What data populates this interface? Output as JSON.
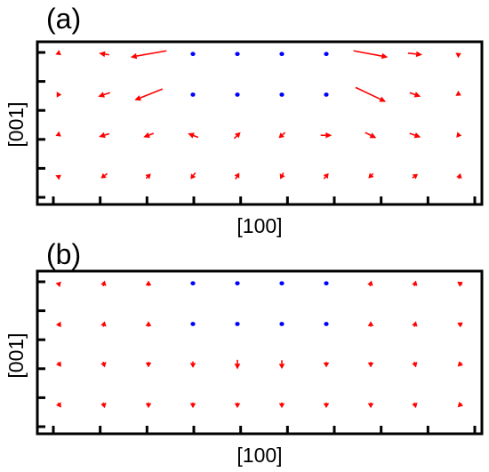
{
  "chart_data": [
    {
      "type": "quiver",
      "panel_label": "(a)",
      "xlabel": "[100]",
      "ylabel": "[001]",
      "xlim": [
        0.5,
        10.5
      ],
      "ylim": [
        0.3,
        4.3
      ],
      "x_ticks": 10,
      "y_ticks": 6,
      "grid": false,
      "colors": {
        "arrow": "#ff0000",
        "dot": "#0000ff"
      },
      "arrows": [
        {
          "x": 1,
          "y": 4,
          "dx": 0.04,
          "dy": -0.03,
          "kind": "arrow"
        },
        {
          "x": 2,
          "y": 4,
          "dx": -0.13,
          "dy": 0.02,
          "kind": "arrow"
        },
        {
          "x": 3,
          "y": 4,
          "dx": -0.45,
          "dy": -0.08,
          "kind": "arrow"
        },
        {
          "x": 4,
          "y": 4,
          "kind": "dot"
        },
        {
          "x": 5,
          "y": 4,
          "kind": "dot"
        },
        {
          "x": 6,
          "y": 4,
          "kind": "dot"
        },
        {
          "x": 7,
          "y": 4,
          "kind": "dot"
        },
        {
          "x": 8,
          "y": 4,
          "dx": 0.43,
          "dy": -0.08,
          "kind": "arrow"
        },
        {
          "x": 9,
          "y": 4,
          "dx": 0.18,
          "dy": -0.02,
          "kind": "arrow"
        },
        {
          "x": 10,
          "y": 4,
          "dx": 0.04,
          "dy": 0.02,
          "kind": "arrow"
        },
        {
          "x": 1,
          "y": 3,
          "dx": 0.05,
          "dy": 0.0,
          "kind": "arrow"
        },
        {
          "x": 2,
          "y": 3,
          "dx": -0.15,
          "dy": -0.05,
          "kind": "arrow"
        },
        {
          "x": 3,
          "y": 3,
          "dx": -0.35,
          "dy": -0.14,
          "kind": "arrow"
        },
        {
          "x": 4,
          "y": 3,
          "kind": "dot"
        },
        {
          "x": 5,
          "y": 3,
          "kind": "dot"
        },
        {
          "x": 6,
          "y": 3,
          "kind": "dot"
        },
        {
          "x": 7,
          "y": 3,
          "kind": "dot"
        },
        {
          "x": 8,
          "y": 3,
          "dx": 0.38,
          "dy": -0.18,
          "kind": "arrow"
        },
        {
          "x": 9,
          "y": 3,
          "dx": 0.14,
          "dy": -0.05,
          "kind": "arrow"
        },
        {
          "x": 10,
          "y": 3,
          "dx": 0.04,
          "dy": -0.02,
          "kind": "arrow"
        },
        {
          "x": 1,
          "y": 2,
          "dx": 0.04,
          "dy": -0.03,
          "kind": "arrow"
        },
        {
          "x": 2,
          "y": 2,
          "dx": -0.13,
          "dy": -0.04,
          "kind": "arrow"
        },
        {
          "x": 3,
          "y": 2,
          "dx": -0.13,
          "dy": -0.05,
          "kind": "arrow"
        },
        {
          "x": 4,
          "y": 2,
          "dx": -0.13,
          "dy": 0.05,
          "kind": "arrow"
        },
        {
          "x": 5,
          "y": 2,
          "dx": 0.08,
          "dy": 0.08,
          "kind": "arrow"
        },
        {
          "x": 6,
          "y": 2,
          "dx": -0.08,
          "dy": -0.07,
          "kind": "arrow"
        },
        {
          "x": 7,
          "y": 2,
          "dx": 0.14,
          "dy": 0.0,
          "kind": "arrow"
        },
        {
          "x": 8,
          "y": 2,
          "dx": 0.14,
          "dy": -0.07,
          "kind": "arrow"
        },
        {
          "x": 9,
          "y": 2,
          "dx": 0.14,
          "dy": -0.05,
          "kind": "arrow"
        },
        {
          "x": 10,
          "y": 2,
          "dx": 0.05,
          "dy": -0.01,
          "kind": "arrow"
        },
        {
          "x": 1,
          "y": 1,
          "dx": 0.04,
          "dy": 0.03,
          "kind": "arrow"
        },
        {
          "x": 2,
          "y": 1,
          "dx": -0.08,
          "dy": -0.06,
          "kind": "arrow"
        },
        {
          "x": 3,
          "y": 1,
          "dx": 0.06,
          "dy": 0.06,
          "kind": "arrow"
        },
        {
          "x": 4,
          "y": 1,
          "dx": -0.06,
          "dy": -0.08,
          "kind": "arrow"
        },
        {
          "x": 5,
          "y": 1,
          "dx": 0.05,
          "dy": 0.08,
          "kind": "arrow"
        },
        {
          "x": 6,
          "y": 1,
          "dx": -0.04,
          "dy": -0.08,
          "kind": "arrow"
        },
        {
          "x": 7,
          "y": 1,
          "dx": 0.06,
          "dy": 0.07,
          "kind": "arrow"
        },
        {
          "x": 8,
          "y": 1,
          "dx": -0.06,
          "dy": -0.06,
          "kind": "arrow"
        },
        {
          "x": 9,
          "y": 1,
          "dx": 0.07,
          "dy": 0.05,
          "kind": "arrow"
        },
        {
          "x": 10,
          "y": 1,
          "dx": 0.02,
          "dy": 0.07,
          "kind": "arrow"
        }
      ]
    },
    {
      "type": "quiver",
      "panel_label": "(b)",
      "xlabel": "[100]",
      "ylabel": "[001]",
      "xlim": [
        0.5,
        10.5
      ],
      "ylim": [
        0.3,
        4.3
      ],
      "x_ticks": 10,
      "y_ticks": 6,
      "grid": false,
      "colors": {
        "arrow": "#ff0000",
        "dot": "#0000ff"
      },
      "arrows": [
        {
          "x": 1,
          "y": 4,
          "dx": 0.04,
          "dy": 0.04,
          "kind": "arrow"
        },
        {
          "x": 2,
          "y": 4,
          "dx": 0.02,
          "dy": 0.07,
          "kind": "arrow"
        },
        {
          "x": 3,
          "y": 4,
          "dx": 0.0,
          "dy": 0.07,
          "kind": "arrow"
        },
        {
          "x": 4,
          "y": 4,
          "kind": "dot"
        },
        {
          "x": 5,
          "y": 4,
          "kind": "dot"
        },
        {
          "x": 6,
          "y": 4,
          "kind": "dot"
        },
        {
          "x": 7,
          "y": 4,
          "kind": "dot"
        },
        {
          "x": 8,
          "y": 4,
          "dx": 0.02,
          "dy": 0.07,
          "kind": "arrow"
        },
        {
          "x": 9,
          "y": 4,
          "dx": 0.02,
          "dy": 0.07,
          "kind": "arrow"
        },
        {
          "x": 10,
          "y": 4,
          "dx": -0.06,
          "dy": 0.04,
          "kind": "arrow"
        },
        {
          "x": 1,
          "y": 3,
          "dx": 0.03,
          "dy": 0.06,
          "kind": "arrow"
        },
        {
          "x": 2,
          "y": 3,
          "dx": 0.02,
          "dy": 0.07,
          "kind": "arrow"
        },
        {
          "x": 3,
          "y": 3,
          "dx": 0.0,
          "dy": 0.07,
          "kind": "arrow"
        },
        {
          "x": 4,
          "y": 3,
          "kind": "dot"
        },
        {
          "x": 5,
          "y": 3,
          "kind": "dot"
        },
        {
          "x": 6,
          "y": 3,
          "kind": "dot"
        },
        {
          "x": 7,
          "y": 3,
          "kind": "dot"
        },
        {
          "x": 8,
          "y": 3,
          "dx": 0.0,
          "dy": 0.07,
          "kind": "arrow"
        },
        {
          "x": 9,
          "y": 3,
          "dx": 0.02,
          "dy": 0.07,
          "kind": "arrow"
        },
        {
          "x": 10,
          "y": 3,
          "dx": -0.06,
          "dy": 0.03,
          "kind": "arrow"
        },
        {
          "x": 1,
          "y": 2,
          "dx": 0.04,
          "dy": -0.06,
          "kind": "arrow"
        },
        {
          "x": 2,
          "y": 2,
          "dx": 0.02,
          "dy": -0.07,
          "kind": "arrow"
        },
        {
          "x": 3,
          "y": 2,
          "dx": 0.0,
          "dy": -0.07,
          "kind": "arrow"
        },
        {
          "x": 4,
          "y": 2,
          "dx": 0.0,
          "dy": -0.08,
          "kind": "arrow"
        },
        {
          "x": 5,
          "y": 2,
          "dx": 0.0,
          "dy": -0.12,
          "kind": "arrow"
        },
        {
          "x": 6,
          "y": 2,
          "dx": 0.0,
          "dy": -0.11,
          "kind": "arrow"
        },
        {
          "x": 7,
          "y": 2,
          "dx": 0.0,
          "dy": -0.07,
          "kind": "arrow"
        },
        {
          "x": 8,
          "y": 2,
          "dx": 0.0,
          "dy": -0.07,
          "kind": "arrow"
        },
        {
          "x": 9,
          "y": 2,
          "dx": 0.02,
          "dy": -0.07,
          "kind": "arrow"
        },
        {
          "x": 10,
          "y": 2,
          "dx": -0.05,
          "dy": -0.05,
          "kind": "arrow"
        },
        {
          "x": 1,
          "y": 1,
          "dx": 0.04,
          "dy": -0.06,
          "kind": "arrow"
        },
        {
          "x": 2,
          "y": 1,
          "dx": 0.02,
          "dy": -0.07,
          "kind": "arrow"
        },
        {
          "x": 3,
          "y": 1,
          "dx": 0.0,
          "dy": -0.07,
          "kind": "arrow"
        },
        {
          "x": 4,
          "y": 1,
          "dx": 0.0,
          "dy": -0.07,
          "kind": "arrow"
        },
        {
          "x": 5,
          "y": 1,
          "dx": 0.0,
          "dy": -0.07,
          "kind": "arrow"
        },
        {
          "x": 6,
          "y": 1,
          "dx": 0.0,
          "dy": -0.07,
          "kind": "arrow"
        },
        {
          "x": 7,
          "y": 1,
          "dx": 0.0,
          "dy": -0.07,
          "kind": "arrow"
        },
        {
          "x": 8,
          "y": 1,
          "dx": 0.0,
          "dy": -0.07,
          "kind": "arrow"
        },
        {
          "x": 9,
          "y": 1,
          "dx": 0.02,
          "dy": -0.07,
          "kind": "arrow"
        },
        {
          "x": 10,
          "y": 1,
          "dx": -0.05,
          "dy": -0.05,
          "kind": "arrow"
        }
      ]
    }
  ]
}
